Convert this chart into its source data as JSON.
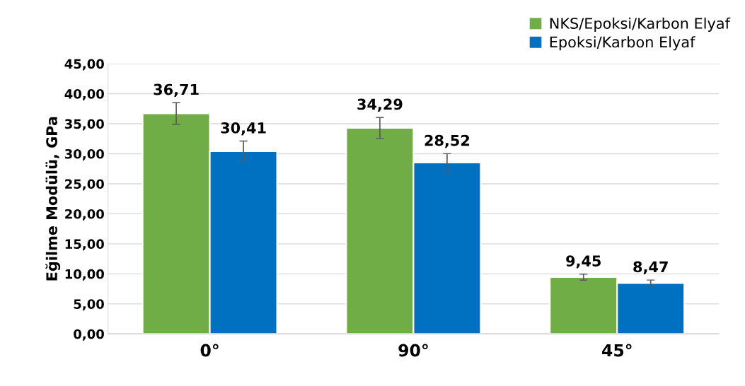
{
  "chart_data": {
    "type": "bar",
    "ylabel": "Eğilme Modülü, GPa",
    "categories": [
      "0°",
      "90°",
      "45°"
    ],
    "series": [
      {
        "name": "NKS/Epoksi/Karbon Elyaf",
        "color": "#70ad47",
        "values": [
          36.71,
          34.29,
          9.45
        ],
        "value_labels": [
          "36,71",
          "34,29",
          "9,45"
        ],
        "errors": [
          1.8,
          1.75,
          0.5
        ]
      },
      {
        "name": "Epoksi/Karbon Elyaf",
        "color": "#0070c0",
        "values": [
          30.41,
          28.52,
          8.47
        ],
        "value_labels": [
          "30,41",
          "28,52",
          "8,47"
        ],
        "errors": [
          1.7,
          1.5,
          0.5
        ]
      }
    ],
    "ylim": [
      0,
      45
    ],
    "yticks": [
      {
        "value": 0,
        "label": "0,00"
      },
      {
        "value": 5,
        "label": "5,00"
      },
      {
        "value": 10,
        "label": "10,00"
      },
      {
        "value": 15,
        "label": "15,00"
      },
      {
        "value": 20,
        "label": "20,00"
      },
      {
        "value": 25,
        "label": "25,00"
      },
      {
        "value": 30,
        "label": "30,00"
      },
      {
        "value": 35,
        "label": "35,00"
      },
      {
        "value": 40,
        "label": "40,00"
      },
      {
        "value": 45,
        "label": "45,00"
      }
    ],
    "grid": "y",
    "legend": "top right"
  }
}
